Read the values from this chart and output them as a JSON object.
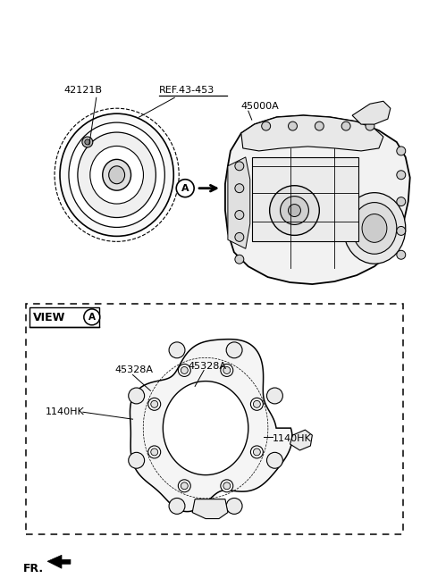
{
  "bg_color": "#ffffff",
  "line_color": "#000000",
  "labels": {
    "part1": "42121B",
    "ref": "REF.43-453",
    "part2": "45000A",
    "part3a_left": "45328A",
    "part3a_right": "45328A",
    "part4_left": "1140HK",
    "part4_right": "1140HK",
    "view_label": "VIEW",
    "circle_a_top": "A",
    "circle_a_view": "A",
    "fr_label": "FR."
  },
  "figsize": [
    4.8,
    6.57
  ],
  "dpi": 100
}
